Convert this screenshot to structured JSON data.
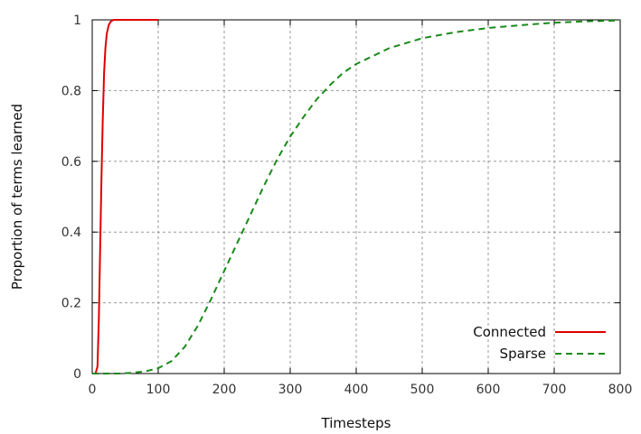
{
  "chart_data": {
    "type": "line",
    "xlabel": "Timesteps",
    "ylabel": "Proportion of terms learned",
    "xlim": [
      0,
      800
    ],
    "ylim": [
      0,
      1
    ],
    "x_ticks": [
      0,
      100,
      200,
      300,
      400,
      500,
      600,
      700,
      800
    ],
    "y_ticks": [
      0,
      0.2,
      0.4,
      0.6,
      0.8,
      1
    ],
    "x_tick_labels": [
      "0",
      "100",
      "200",
      "300",
      "400",
      "500",
      "600",
      "700",
      "800"
    ],
    "y_tick_labels": [
      "0",
      "0.2",
      "0.4",
      "0.6",
      "0.8",
      "1"
    ],
    "grid": true,
    "legend_position": "bottom-right",
    "series": [
      {
        "name": "Connected",
        "color": "#e00000",
        "style": "solid",
        "x": [
          0,
          5,
          8,
          10,
          12,
          14,
          16,
          18,
          20,
          22,
          25,
          28,
          32,
          36,
          40,
          50,
          60,
          80,
          100
        ],
        "y": [
          0,
          0,
          0.02,
          0.15,
          0.35,
          0.55,
          0.72,
          0.85,
          0.92,
          0.96,
          0.985,
          0.995,
          1,
          1,
          1,
          1,
          1,
          1,
          1
        ]
      },
      {
        "name": "Sparse",
        "color": "#1a8a1a",
        "style": "dashed",
        "x": [
          0,
          40,
          60,
          80,
          100,
          120,
          140,
          160,
          180,
          200,
          220,
          240,
          260,
          280,
          300,
          320,
          340,
          360,
          380,
          400,
          450,
          500,
          550,
          600,
          650,
          700,
          750,
          800
        ],
        "y": [
          0,
          0,
          0.002,
          0.006,
          0.015,
          0.035,
          0.075,
          0.135,
          0.21,
          0.29,
          0.37,
          0.45,
          0.53,
          0.605,
          0.67,
          0.725,
          0.775,
          0.815,
          0.85,
          0.875,
          0.92,
          0.948,
          0.965,
          0.977,
          0.985,
          0.992,
          0.996,
          0.998
        ]
      }
    ]
  }
}
